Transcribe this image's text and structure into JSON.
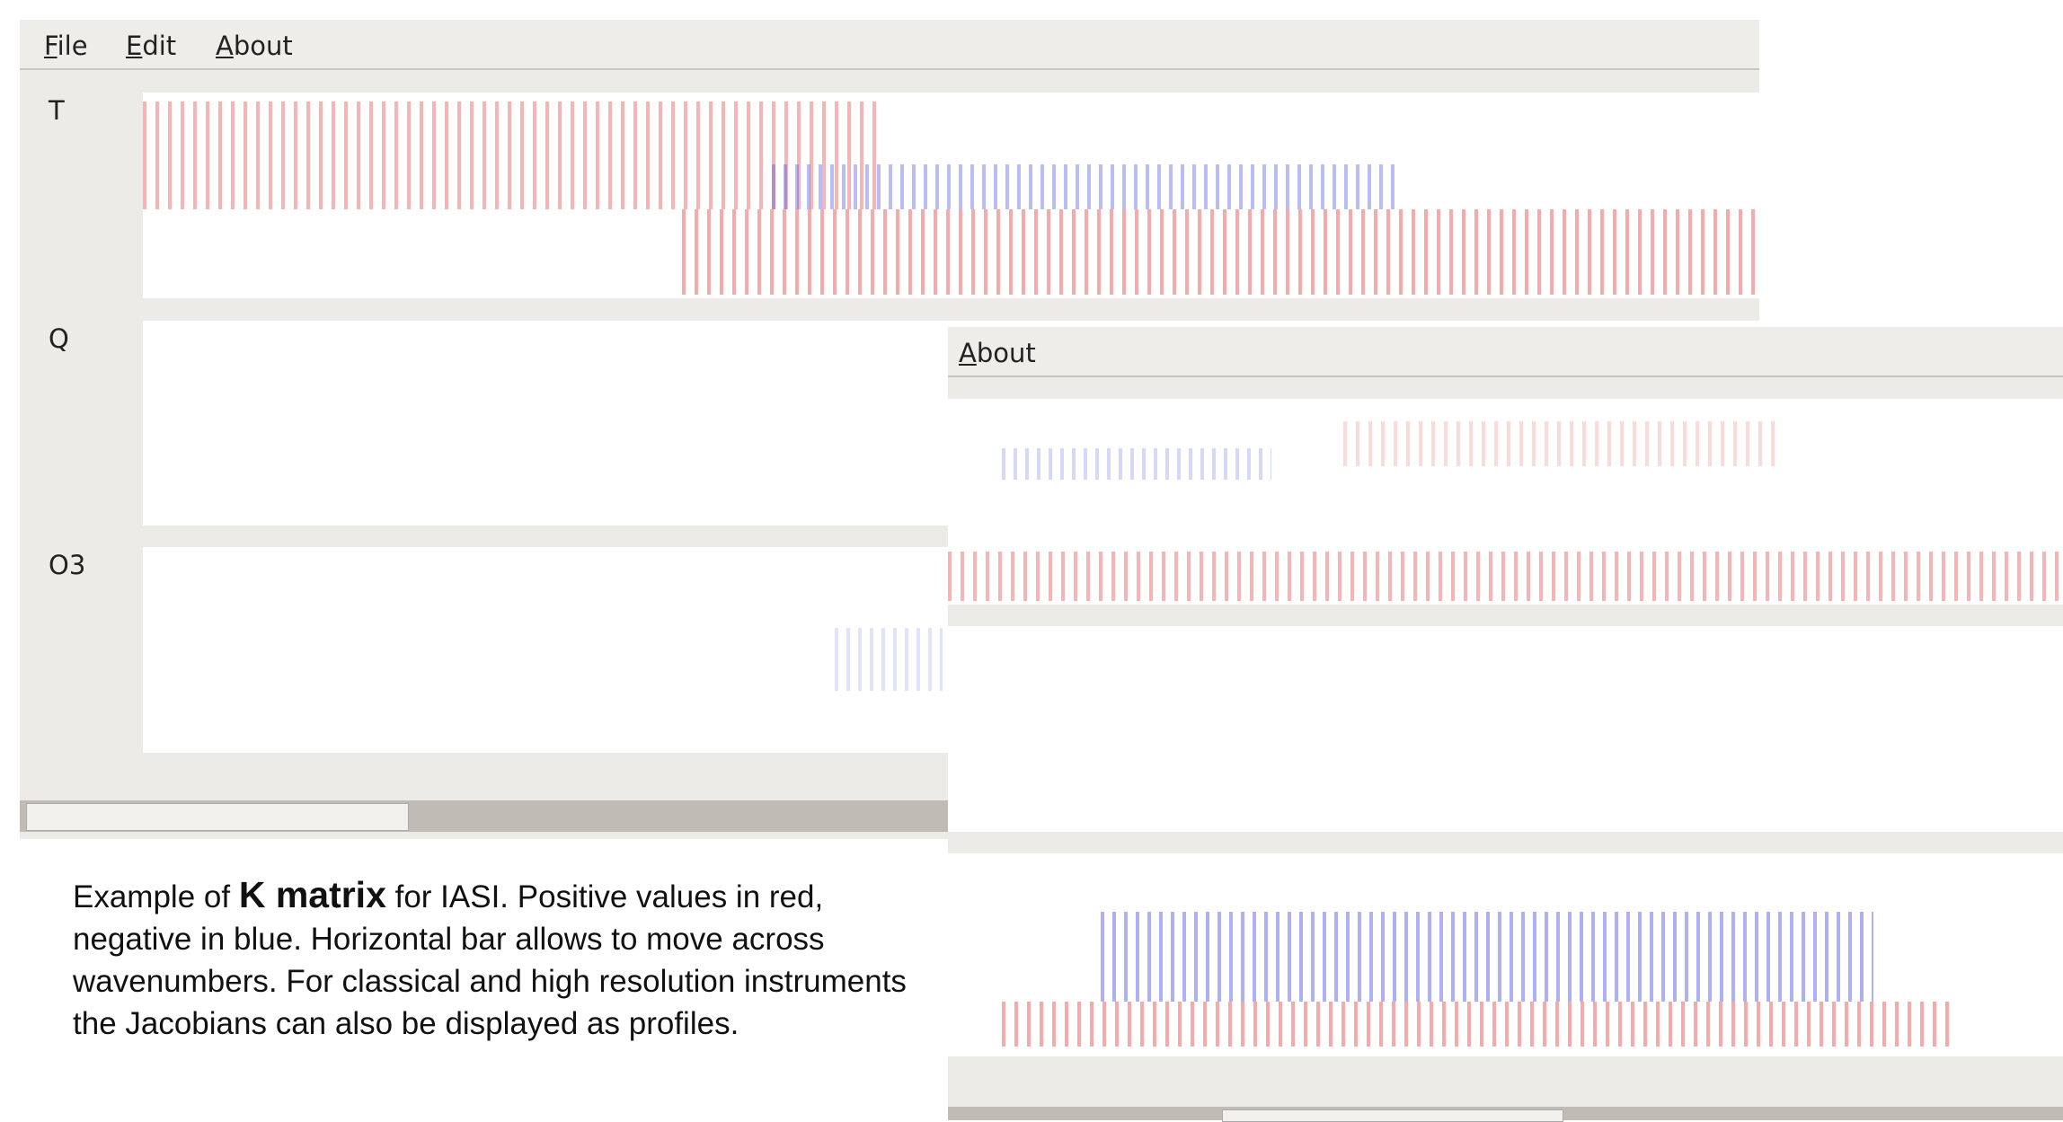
{
  "menu": {
    "items": [
      "File",
      "Edit",
      "About"
    ]
  },
  "panels": [
    {
      "label": "T"
    },
    {
      "label": "Q"
    },
    {
      "label": "O3"
    }
  ],
  "about_window": {
    "menu": "About"
  },
  "caption": {
    "before": "Example of ",
    "bold": "K matrix",
    "after": " for IASI. Positive values in red, negative in blue. Horizontal bar allows to move across wavenumbers. For classical and high resolution instruments the Jacobians can also be displayed as profiles."
  }
}
